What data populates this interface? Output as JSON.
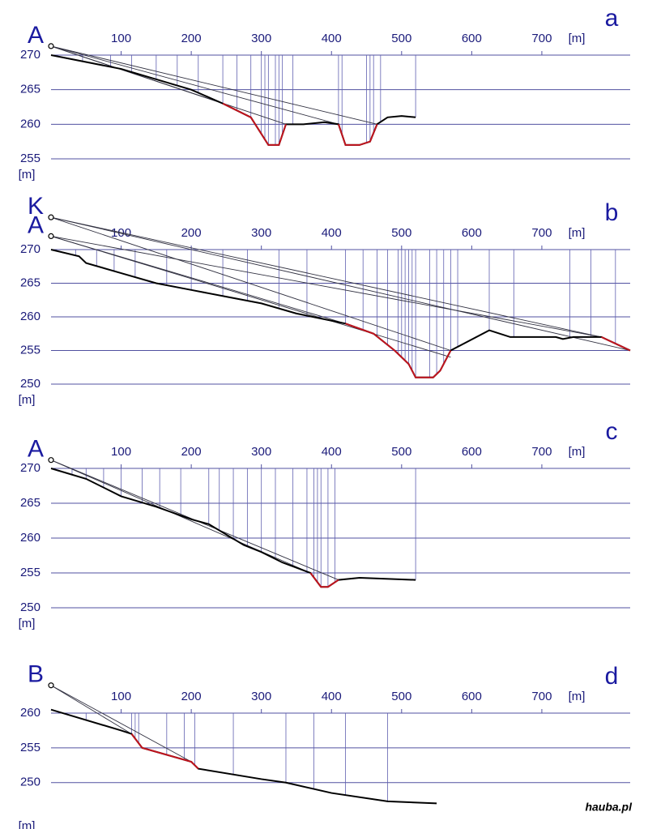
{
  "credit": "hauba.pl",
  "chart_data": [
    {
      "type": "line",
      "label": "a",
      "x_unit": "[m]",
      "y_unit": "[m]",
      "xlim": [
        0,
        826
      ],
      "ylim": [
        255,
        270
      ],
      "xticks": [
        100,
        200,
        300,
        400,
        500,
        600,
        700
      ],
      "yticks": [
        270,
        265,
        260,
        255
      ],
      "grid": true,
      "grid_color": "#5050a0",
      "profile_color": "#000000",
      "red_color": "#c0141e",
      "sight_color": "#303040",
      "vertical_color": "#6060b0",
      "observers": [
        {
          "name": "A",
          "x": 0,
          "y": 271.3
        }
      ],
      "profile": {
        "x": [
          0,
          100,
          200,
          245,
          285,
          310,
          325,
          335,
          360,
          390,
          410,
          420,
          440,
          455,
          465,
          480,
          500,
          520
        ],
        "values": [
          270,
          268,
          265,
          263,
          261,
          257,
          257,
          260,
          260,
          260.3,
          260,
          257,
          257,
          257.5,
          260,
          261,
          261.2,
          261
        ]
      },
      "red_segments": [
        {
          "x": [
            245,
            285,
            310,
            325,
            335
          ],
          "values": [
            263,
            261,
            257,
            257,
            260
          ]
        },
        {
          "x": [
            410,
            420,
            440,
            455,
            465
          ],
          "values": [
            260,
            257,
            257,
            257.5,
            260
          ]
        }
      ],
      "sight_lines": [
        {
          "x": [
            0,
            245
          ],
          "values": [
            271.3,
            263
          ]
        },
        {
          "x": [
            0,
            335
          ],
          "values": [
            271.3,
            260
          ]
        },
        {
          "x": [
            0,
            410
          ],
          "values": [
            271.3,
            260
          ]
        },
        {
          "x": [
            0,
            465
          ],
          "values": [
            271.3,
            260
          ]
        }
      ],
      "verticals": [
        45,
        85,
        115,
        150,
        180,
        210,
        245,
        265,
        285,
        300,
        305,
        310,
        320,
        325,
        330,
        345,
        410,
        415,
        450,
        455,
        460,
        470,
        520
      ]
    },
    {
      "type": "line",
      "label": "b",
      "x_unit": "[m]",
      "y_unit": "[m]",
      "xlim": [
        0,
        826
      ],
      "ylim": [
        250,
        270
      ],
      "xticks": [
        100,
        200,
        300,
        400,
        500,
        600,
        700
      ],
      "yticks": [
        270,
        265,
        260,
        255,
        250
      ],
      "grid": true,
      "grid_color": "#5050a0",
      "profile_color": "#000000",
      "red_color": "#c0141e",
      "sight_color": "#303040",
      "vertical_color": "#6060b0",
      "observers": [
        {
          "name": "K",
          "x": 0,
          "y": 274.8
        },
        {
          "name": "A",
          "x": 0,
          "y": 272
        }
      ],
      "profile": {
        "x": [
          0,
          40,
          50,
          100,
          150,
          200,
          250,
          300,
          350,
          420,
          460,
          490,
          510,
          520,
          545,
          555,
          570,
          625,
          655,
          720,
          730,
          745,
          785,
          826
        ],
        "values": [
          270,
          269,
          268,
          266.5,
          265,
          264,
          263,
          262,
          260.5,
          259,
          257.5,
          255,
          253,
          251,
          251,
          252,
          255,
          258,
          257,
          257,
          256.7,
          257,
          257,
          255
        ]
      },
      "red_segments": [
        {
          "x": [
            420,
            460,
            490,
            510,
            520,
            545,
            555,
            570
          ],
          "values": [
            259,
            257.5,
            255,
            253,
            251,
            251,
            252,
            255
          ]
        },
        {
          "x": [
            785,
            826
          ],
          "values": [
            257,
            255
          ]
        }
      ],
      "sight_lines": [
        {
          "x": [
            0,
            826
          ],
          "values": [
            274.8,
            255
          ]
        },
        {
          "x": [
            0,
            785
          ],
          "values": [
            274.8,
            257
          ]
        },
        {
          "x": [
            0,
            570
          ],
          "values": [
            274.8,
            255
          ]
        },
        {
          "x": [
            0,
            420
          ],
          "values": [
            272,
            259
          ]
        },
        {
          "x": [
            0,
            570
          ],
          "values": [
            272,
            254
          ]
        },
        {
          "x": [
            0,
            785
          ],
          "values": [
            272,
            257
          ]
        }
      ],
      "verticals": [
        35,
        65,
        90,
        120,
        165,
        200,
        245,
        280,
        325,
        365,
        420,
        445,
        465,
        480,
        495,
        500,
        505,
        510,
        515,
        520,
        540,
        550,
        560,
        570,
        580,
        625,
        660,
        740,
        770,
        805
      ]
    },
    {
      "type": "line",
      "label": "c",
      "x_unit": "[m]",
      "y_unit": "[m]",
      "xlim": [
        0,
        826
      ],
      "ylim": [
        250,
        270
      ],
      "xticks": [
        100,
        200,
        300,
        400,
        500,
        600,
        700
      ],
      "yticks": [
        270,
        265,
        260,
        255,
        250
      ],
      "grid": true,
      "grid_color": "#5050a0",
      "profile_color": "#000000",
      "red_color": "#c0141e",
      "sight_color": "#303040",
      "vertical_color": "#6060b0",
      "observers": [
        {
          "name": "A",
          "x": 0,
          "y": 271.2
        }
      ],
      "profile": {
        "x": [
          0,
          50,
          100,
          150,
          200,
          225,
          250,
          275,
          300,
          330,
          370,
          385,
          395,
          410,
          440,
          520
        ],
        "values": [
          270,
          268.5,
          266,
          264.5,
          262.7,
          262,
          260.5,
          259,
          258,
          256.5,
          255,
          253,
          253,
          254,
          254.3,
          254
        ]
      },
      "red_segments": [
        {
          "x": [
            370,
            385,
            395,
            410
          ],
          "values": [
            255,
            253,
            253,
            254
          ]
        }
      ],
      "sight_lines": [
        {
          "x": [
            0,
            370
          ],
          "values": [
            271.2,
            255
          ]
        },
        {
          "x": [
            0,
            410
          ],
          "values": [
            271.2,
            254
          ]
        }
      ],
      "verticals": [
        30,
        50,
        75,
        100,
        130,
        155,
        185,
        225,
        240,
        260,
        280,
        300,
        320,
        345,
        365,
        375,
        380,
        385,
        395,
        405,
        520
      ]
    },
    {
      "type": "line",
      "label": "d",
      "x_unit": "[m]",
      "y_unit": "[m]",
      "xlim": [
        0,
        826
      ],
      "ylim": [
        246,
        260
      ],
      "xticks": [
        100,
        200,
        300,
        400,
        500,
        600,
        700
      ],
      "yticks": [
        260,
        255,
        250
      ],
      "grid": true,
      "grid_color": "#5050a0",
      "profile_color": "#000000",
      "red_color": "#c0141e",
      "sight_color": "#303040",
      "vertical_color": "#6060b0",
      "observers": [
        {
          "name": "B",
          "x": 0,
          "y": 264
        }
      ],
      "profile": {
        "x": [
          0,
          100,
          115,
          130,
          200,
          210,
          300,
          335,
          400,
          480,
          550
        ],
        "values": [
          260.5,
          257.5,
          257,
          255,
          253,
          252,
          250.5,
          250,
          248.5,
          247.3,
          247
        ]
      },
      "red_segments": [
        {
          "x": [
            115,
            130,
            200,
            210
          ],
          "values": [
            257,
            255,
            253,
            252
          ]
        }
      ],
      "sight_lines": [
        {
          "x": [
            0,
            115
          ],
          "values": [
            264,
            257
          ]
        },
        {
          "x": [
            0,
            200
          ],
          "values": [
            264,
            253
          ]
        }
      ],
      "verticals": [
        50,
        115,
        120,
        125,
        165,
        190,
        205,
        260,
        335,
        375,
        420,
        480
      ]
    }
  ]
}
